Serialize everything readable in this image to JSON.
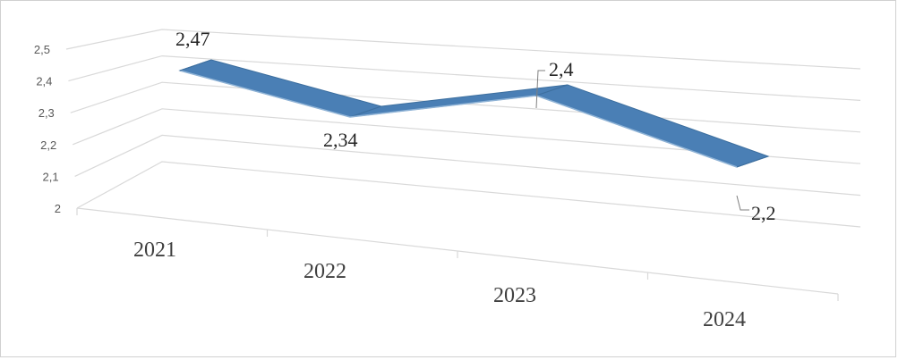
{
  "chart_data": {
    "type": "line",
    "style": "3d-ribbon",
    "categories": [
      "2021",
      "2022",
      "2023",
      "2024"
    ],
    "series": [
      {
        "values": [
          2.47,
          2.34,
          2.4,
          2.2
        ],
        "color": "#4a7fb5"
      }
    ],
    "data_labels": [
      "2,47",
      "2,34",
      "2,4",
      "2,2"
    ],
    "ytick_labels": [
      "2",
      "2,1",
      "2,2",
      "2,3",
      "2,4",
      "2,5"
    ],
    "ylim": [
      2,
      2.5
    ],
    "grid": true,
    "legend": false,
    "title": "",
    "xlabel": "",
    "ylabel": ""
  }
}
